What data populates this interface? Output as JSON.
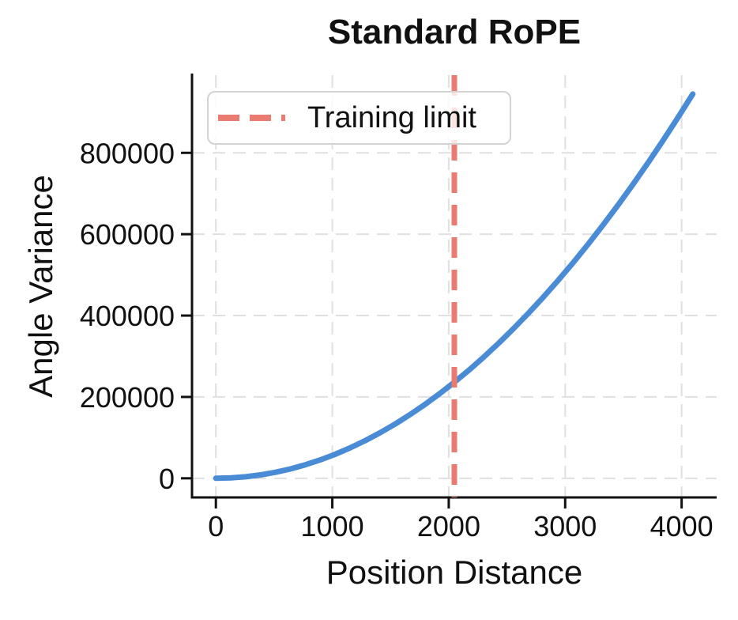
{
  "figure": {
    "background": "#ffffff"
  },
  "chart_data": {
    "type": "line",
    "title": "Standard RoPE",
    "xlabel": "Position Distance",
    "ylabel": "Angle Variance",
    "x_ticks": [
      0,
      1000,
      2000,
      3000,
      4000
    ],
    "y_ticks": [
      0,
      200000,
      400000,
      600000,
      800000
    ],
    "xlim": [
      -205,
      4301
    ],
    "ylim": [
      -47000,
      991000
    ],
    "grid": true,
    "grid_style": "dashed",
    "grid_color": "#e0e0e0",
    "spine_color": "#111111",
    "series": [
      {
        "name": "angle-variance-curve",
        "color": "#4a8bd6",
        "style": "solid",
        "x": [
          0,
          128,
          256,
          384,
          512,
          640,
          768,
          896,
          1024,
          1152,
          1280,
          1408,
          1536,
          1664,
          1792,
          1920,
          2048,
          2176,
          2304,
          2432,
          2560,
          2688,
          2816,
          2944,
          3072,
          3200,
          3328,
          3456,
          3584,
          3712,
          3840,
          3968,
          4096
        ],
        "y": [
          0,
          922,
          3690,
          8302,
          14759,
          23060,
          33207,
          45199,
          59035,
          74716,
          92242,
          111613,
          132828,
          155889,
          180794,
          207544,
          236139,
          266579,
          298864,
          332993,
          368968,
          406787,
          446451,
          487960,
          531313,
          576512,
          623555,
          672444,
          723177,
          775754,
          830177,
          886445,
          944557
        ]
      }
    ],
    "vline": {
      "x": 2048,
      "label": "Training limit",
      "color": "#e97b70",
      "style": "dashed"
    },
    "legend": {
      "position": "upper-left",
      "entries": [
        {
          "label": "Training limit",
          "color": "#e97b70",
          "style": "dashed"
        }
      ]
    }
  }
}
